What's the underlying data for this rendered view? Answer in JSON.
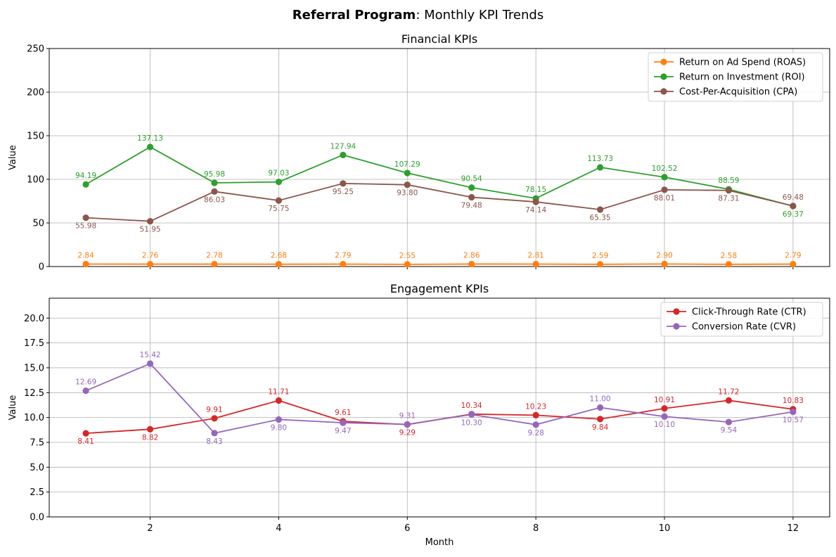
{
  "figure": {
    "title_bold": "Referral Program",
    "title_rest": ": Monthly KPI Trends"
  },
  "chart_data": [
    {
      "type": "line",
      "title": "Financial KPIs",
      "xlabel": "",
      "ylabel": "Value",
      "x": [
        1,
        2,
        3,
        4,
        5,
        6,
        7,
        8,
        9,
        10,
        11,
        12
      ],
      "xlim": [
        0.43,
        12.57
      ],
      "ylim": [
        0,
        250
      ],
      "yticks": [
        0,
        50,
        100,
        150,
        200,
        250
      ],
      "xticks": [
        2,
        4,
        6,
        8,
        10,
        12
      ],
      "grid": true,
      "legend_position": "top-right",
      "series": [
        {
          "name": "Return on Ad Spend (ROAS)",
          "color": "#ff7f0e",
          "label_pos": "above",
          "values": [
            2.84,
            2.76,
            2.78,
            2.68,
            2.79,
            2.55,
            2.86,
            2.81,
            2.59,
            2.9,
            2.58,
            2.79
          ],
          "labels": [
            "2.84",
            "2.76",
            "2.78",
            "2.68",
            "2.79",
            "2.55",
            "2.86",
            "2.81",
            "2.59",
            "2.90",
            "2.58",
            "2.79"
          ]
        },
        {
          "name": "Return on Investment (ROI)",
          "color": "#2ca02c",
          "label_pos": [
            "above",
            "above",
            "above",
            "above",
            "above",
            "above",
            "above",
            "above",
            "above",
            "above",
            "above",
            "below"
          ],
          "values": [
            94.19,
            137.13,
            95.98,
            97.03,
            127.94,
            107.29,
            90.54,
            78.15,
            113.73,
            102.52,
            88.59,
            69.37
          ],
          "labels": [
            "94.19",
            "137.13",
            "95.98",
            "97.03",
            "127.94",
            "107.29",
            "90.54",
            "78.15",
            "113.73",
            "102.52",
            "88.59",
            "69.37"
          ]
        },
        {
          "name": "Cost-Per-Acquisition (CPA)",
          "color": "#8c564b",
          "label_pos": [
            "below",
            "below",
            "below",
            "below",
            "below",
            "below",
            "below",
            "below",
            "below",
            "below",
            "below",
            "above"
          ],
          "values": [
            55.98,
            51.95,
            86.03,
            75.75,
            95.25,
            93.8,
            79.48,
            74.14,
            65.35,
            88.01,
            87.31,
            69.48
          ],
          "labels": [
            "55.98",
            "51.95",
            "86.03",
            "75.75",
            "95.25",
            "93.80",
            "79.48",
            "74.14",
            "65.35",
            "88.01",
            "87.31",
            "69.48"
          ]
        }
      ]
    },
    {
      "type": "line",
      "title": "Engagement KPIs",
      "xlabel": "Month",
      "ylabel": "Value",
      "x": [
        1,
        2,
        3,
        4,
        5,
        6,
        7,
        8,
        9,
        10,
        11,
        12
      ],
      "xlim": [
        0.43,
        12.57
      ],
      "ylim": [
        0,
        22
      ],
      "yticks": [
        0.0,
        2.5,
        5.0,
        7.5,
        10.0,
        12.5,
        15.0,
        17.5,
        20.0
      ],
      "ytick_labels": [
        "0.0",
        "2.5",
        "5.0",
        "7.5",
        "10.0",
        "12.5",
        "15.0",
        "17.5",
        "20.0"
      ],
      "xticks": [
        2,
        4,
        6,
        8,
        10,
        12
      ],
      "grid": true,
      "legend_position": "top-right",
      "series": [
        {
          "name": "Click-Through Rate (CTR)",
          "color": "#d62728",
          "label_pos": [
            "below",
            "below",
            "above",
            "above",
            "above",
            "below",
            "above",
            "above",
            "below",
            "above",
            "above",
            "above"
          ],
          "values": [
            8.41,
            8.82,
            9.91,
            11.71,
            9.61,
            9.29,
            10.34,
            10.23,
            9.84,
            10.91,
            11.72,
            10.83
          ],
          "labels": [
            "8.41",
            "8.82",
            "9.91",
            "11.71",
            "9.61",
            "9.29",
            "10.34",
            "10.23",
            "9.84",
            "10.91",
            "11.72",
            "10.83"
          ]
        },
        {
          "name": "Conversion Rate (CVR)",
          "color": "#9467bd",
          "label_pos": [
            "above",
            "above",
            "below",
            "below",
            "below",
            "above",
            "below",
            "below",
            "above",
            "below",
            "below",
            "below"
          ],
          "values": [
            12.69,
            15.42,
            8.43,
            9.8,
            9.47,
            9.31,
            10.3,
            9.28,
            11.0,
            10.1,
            9.54,
            10.57
          ],
          "labels": [
            "12.69",
            "15.42",
            "8.43",
            "9.80",
            "9.47",
            "9.31",
            "10.30",
            "9.28",
            "11.00",
            "10.10",
            "9.54",
            "10.57"
          ]
        }
      ]
    }
  ]
}
